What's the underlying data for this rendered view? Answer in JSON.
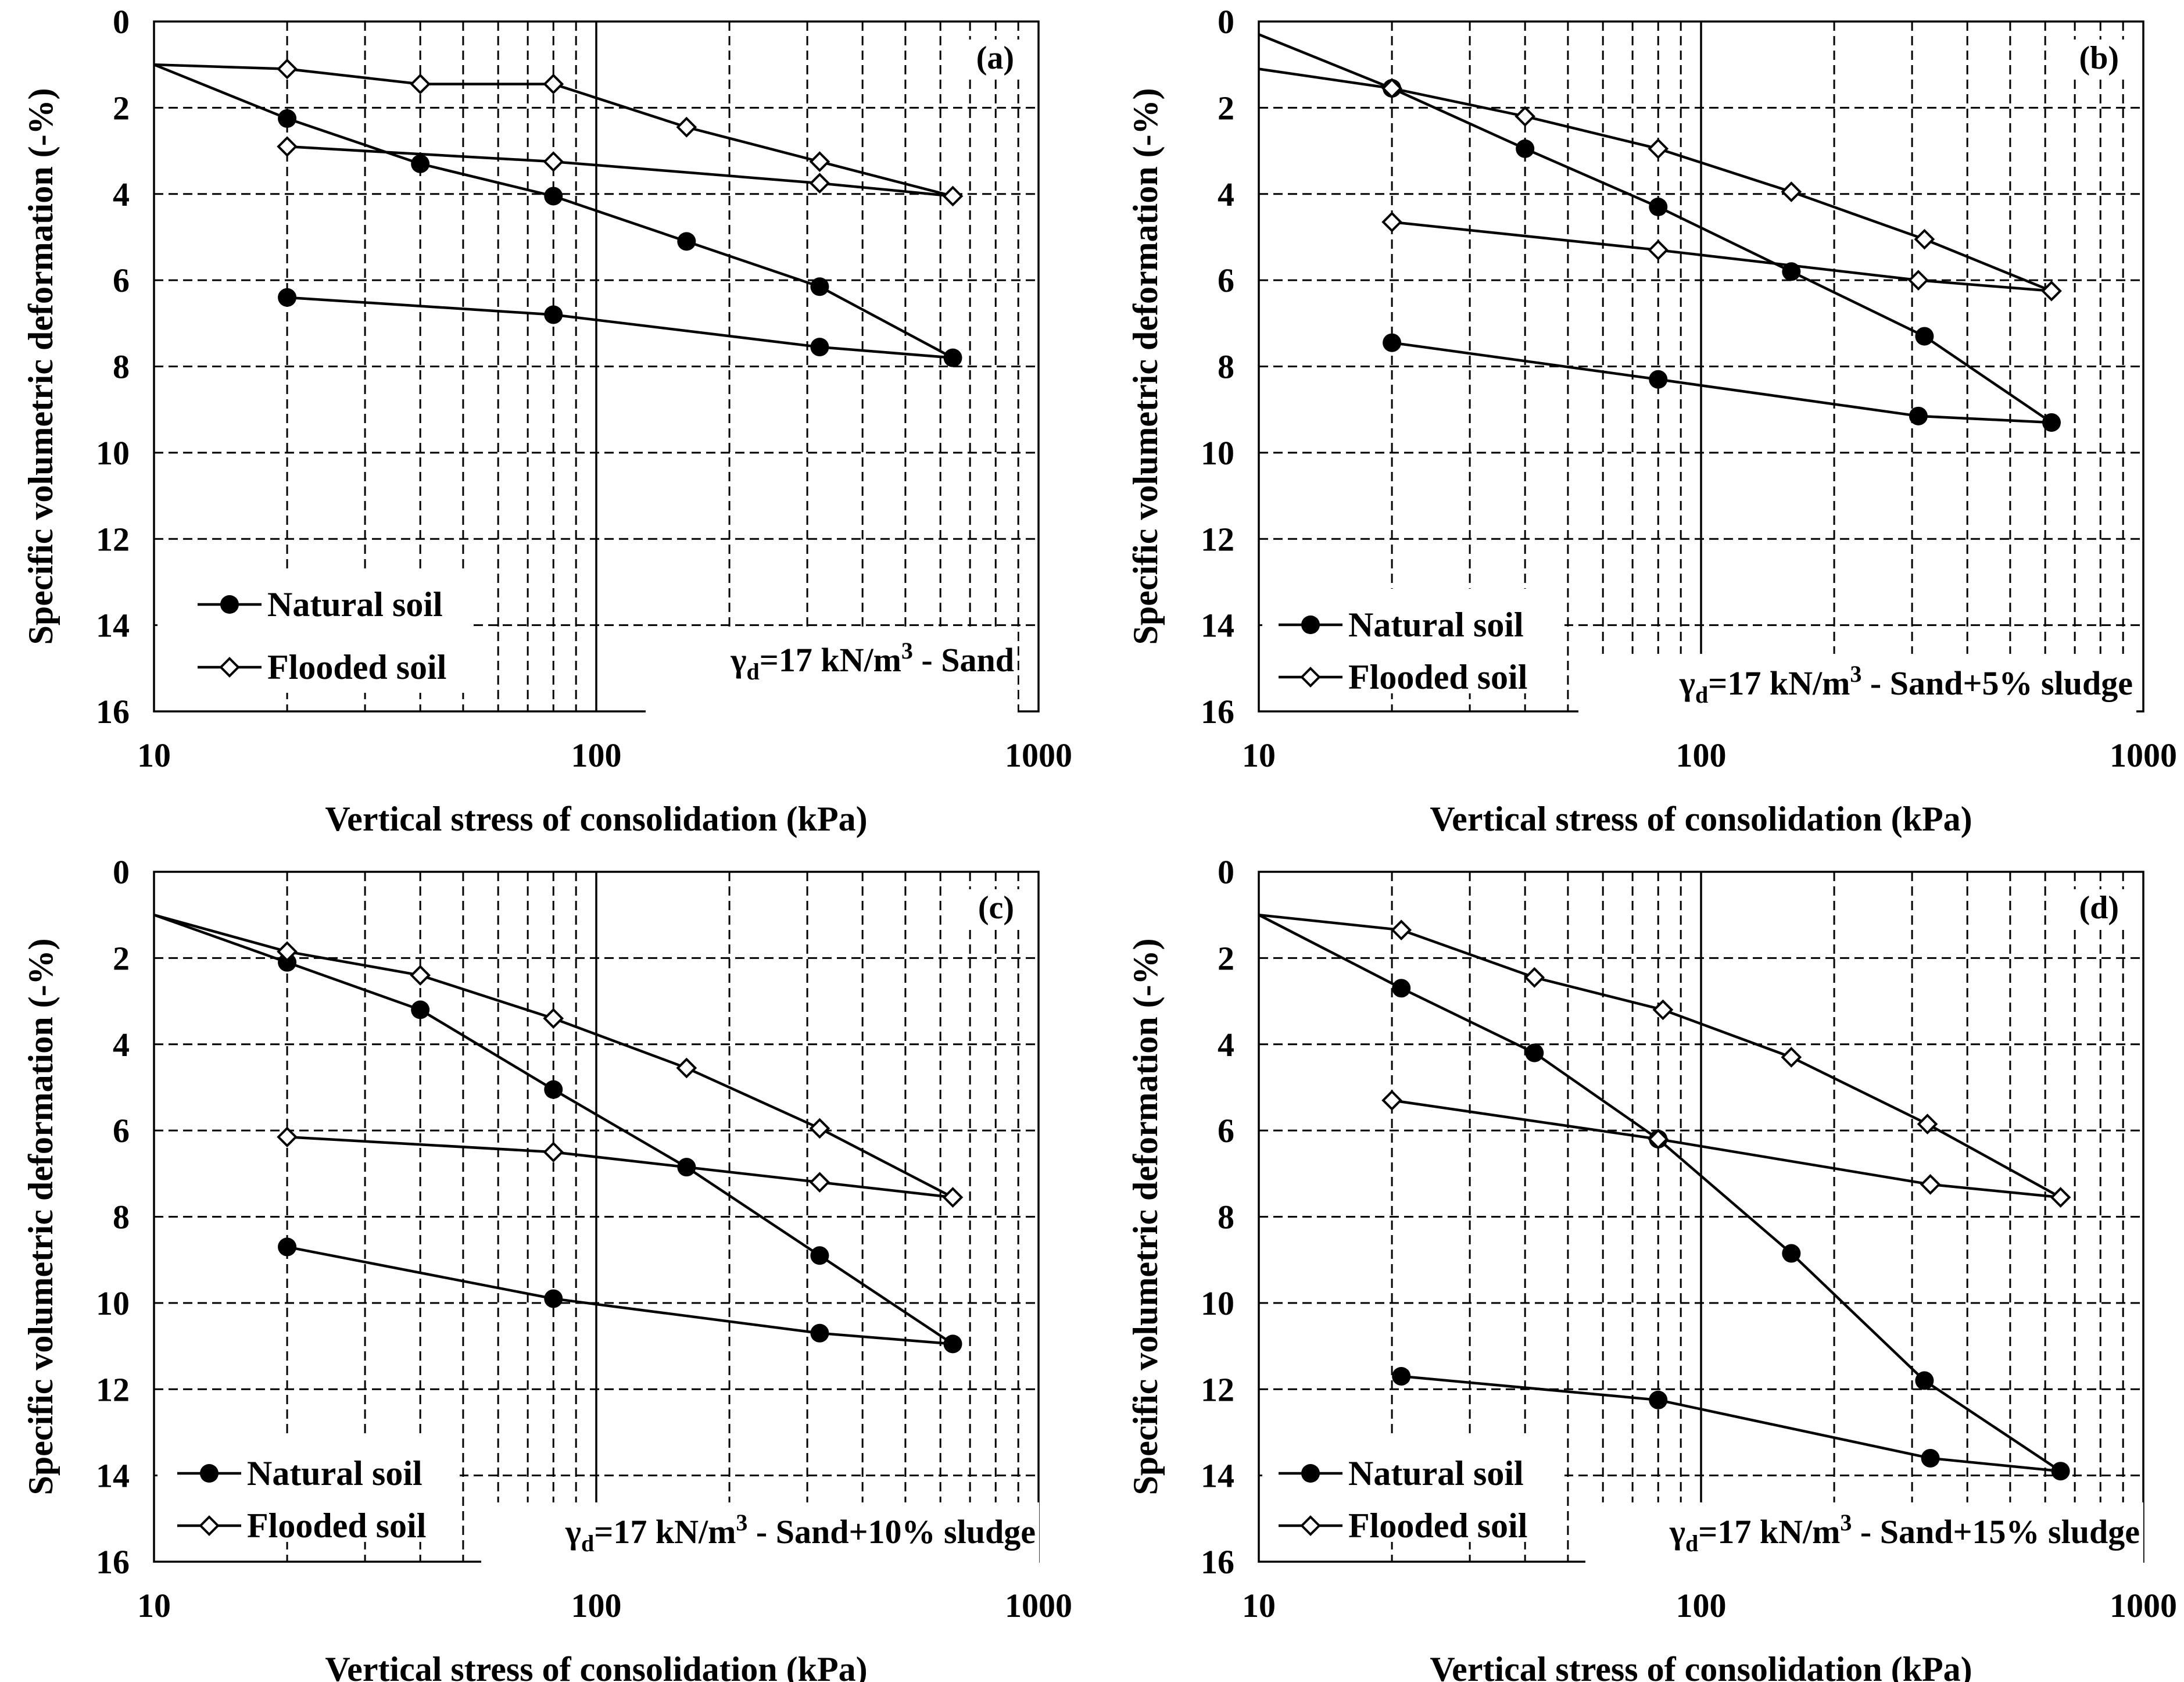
{
  "figure": {
    "panels": [
      "a",
      "b",
      "c",
      "d"
    ]
  },
  "chart_data": [
    {
      "type": "line",
      "panel_label": "(a)",
      "annotation": {
        "prefix": "γ",
        "subscript": "d",
        "middle": "=17 kN/m",
        "superscript": "3",
        "suffix": " - Sand"
      },
      "xlabel": "Vertical stress of consolidation (kPa)",
      "ylabel": "Specific volumetric deformation (-%)",
      "xscale": "log",
      "xlim": [
        10,
        1000
      ],
      "ylim": [
        0,
        16
      ],
      "y_inverted": true,
      "xticks": [
        "10",
        "100",
        "1000"
      ],
      "yticks": [
        "0",
        "2",
        "4",
        "6",
        "8",
        "10",
        "12",
        "14",
        "16"
      ],
      "grid": "dashed",
      "legend_position": "bottom-left",
      "series": [
        {
          "name": "Natural soil",
          "marker": "filled-circle",
          "points": [
            [
              10,
              1.0
            ],
            [
              20,
              2.25
            ],
            [
              40,
              3.3
            ],
            [
              80,
              4.05
            ],
            [
              160,
              5.1
            ],
            [
              320,
              6.15
            ],
            [
              640,
              7.8
            ],
            [
              320,
              7.55
            ],
            [
              80,
              6.8
            ],
            [
              20,
              6.4
            ]
          ]
        },
        {
          "name": "Flooded soil",
          "marker": "open-diamond",
          "points": [
            [
              10,
              1.0
            ],
            [
              20,
              1.1
            ],
            [
              40,
              1.45
            ],
            [
              80,
              1.45
            ],
            [
              160,
              2.45
            ],
            [
              320,
              3.25
            ],
            [
              640,
              4.05
            ],
            [
              320,
              3.75
            ],
            [
              80,
              3.25
            ],
            [
              20,
              2.9
            ]
          ]
        }
      ]
    },
    {
      "type": "line",
      "panel_label": "(b)",
      "annotation": {
        "prefix": "γ",
        "subscript": "d",
        "middle": "=17 kN/m",
        "superscript": "3",
        "suffix": " - Sand+5% sludge"
      },
      "xlabel": "Vertical stress of consolidation (kPa)",
      "ylabel": "Specific volumetric deformation (-%)",
      "xscale": "log",
      "xlim": [
        10,
        1000
      ],
      "ylim": [
        0,
        16
      ],
      "y_inverted": true,
      "xticks": [
        "10",
        "100",
        "1000"
      ],
      "yticks": [
        "0",
        "2",
        "4",
        "6",
        "8",
        "10",
        "12",
        "14",
        "16"
      ],
      "grid": "dashed",
      "legend_position": "bottom-left",
      "series": [
        {
          "name": "Natural soil",
          "marker": "filled-circle",
          "points": [
            [
              10,
              0.3
            ],
            [
              20,
              1.55
            ],
            [
              40,
              2.95
            ],
            [
              80,
              4.3
            ],
            [
              160,
              5.8
            ],
            [
              320,
              7.3
            ],
            [
              620,
              9.3
            ],
            [
              310,
              9.15
            ],
            [
              80,
              8.3
            ],
            [
              20,
              7.45
            ]
          ]
        },
        {
          "name": "Flooded soil",
          "marker": "open-diamond",
          "points": [
            [
              10,
              1.1
            ],
            [
              20,
              1.55
            ],
            [
              40,
              2.2
            ],
            [
              80,
              2.95
            ],
            [
              160,
              3.95
            ],
            [
              320,
              5.05
            ],
            [
              620,
              6.25
            ],
            [
              310,
              6.0
            ],
            [
              80,
              5.3
            ],
            [
              20,
              4.65
            ]
          ]
        }
      ]
    },
    {
      "type": "line",
      "panel_label": "(c)",
      "annotation": {
        "prefix": "γ",
        "subscript": "d",
        "middle": "=17 kN/m",
        "superscript": "3",
        "suffix": " - Sand+10% sludge"
      },
      "xlabel": "Vertical stress of consolidation (kPa)",
      "ylabel": "Specific volumetric deformation (-%)",
      "xscale": "log",
      "xlim": [
        10,
        1000
      ],
      "ylim": [
        0,
        16
      ],
      "y_inverted": true,
      "xticks": [
        "10",
        "100",
        "1000"
      ],
      "yticks": [
        "0",
        "2",
        "4",
        "6",
        "8",
        "10",
        "12",
        "14",
        "16"
      ],
      "grid": "dashed",
      "legend_position": "bottom-left",
      "series": [
        {
          "name": "Natural soil",
          "marker": "filled-circle",
          "points": [
            [
              10,
              1.0
            ],
            [
              20,
              2.1
            ],
            [
              40,
              3.2
            ],
            [
              80,
              5.05
            ],
            [
              160,
              6.85
            ],
            [
              320,
              8.9
            ],
            [
              640,
              10.95
            ],
            [
              320,
              10.7
            ],
            [
              80,
              9.9
            ],
            [
              20,
              8.7
            ]
          ]
        },
        {
          "name": "Flooded soil",
          "marker": "open-diamond",
          "points": [
            [
              10,
              1.0
            ],
            [
              20,
              1.85
            ],
            [
              40,
              2.4
            ],
            [
              80,
              3.4
            ],
            [
              160,
              4.55
            ],
            [
              320,
              5.95
            ],
            [
              640,
              7.55
            ],
            [
              320,
              7.2
            ],
            [
              80,
              6.5
            ],
            [
              20,
              6.15
            ]
          ]
        }
      ]
    },
    {
      "type": "line",
      "panel_label": "(d)",
      "annotation": {
        "prefix": "γ",
        "subscript": "d",
        "middle": "=17 kN/m",
        "superscript": "3",
        "suffix": " - Sand+15% sludge"
      },
      "xlabel": "Vertical stress of consolidation (kPa)",
      "ylabel": "Specific volumetric deformation (-%)",
      "xscale": "log",
      "xlim": [
        10,
        1000
      ],
      "ylim": [
        0,
        16
      ],
      "y_inverted": true,
      "xticks": [
        "10",
        "100",
        "1000"
      ],
      "yticks": [
        "0",
        "2",
        "4",
        "6",
        "8",
        "10",
        "12",
        "14",
        "16"
      ],
      "grid": "dashed",
      "legend_position": "bottom-left",
      "series": [
        {
          "name": "Natural soil",
          "marker": "filled-circle",
          "points": [
            [
              10,
              1.0
            ],
            [
              21,
              2.7
            ],
            [
              42,
              4.2
            ],
            [
              80,
              6.2
            ],
            [
              160,
              8.85
            ],
            [
              320,
              11.8
            ],
            [
              650,
              13.9
            ],
            [
              330,
              13.6
            ],
            [
              80,
              12.25
            ],
            [
              21,
              11.7
            ]
          ]
        },
        {
          "name": "Flooded soil",
          "marker": "open-diamond",
          "points": [
            [
              10,
              1.0
            ],
            [
              21,
              1.35
            ],
            [
              42,
              2.45
            ],
            [
              82,
              3.2
            ],
            [
              160,
              4.3
            ],
            [
              325,
              5.85
            ],
            [
              650,
              7.55
            ],
            [
              330,
              7.25
            ],
            [
              80,
              6.2
            ],
            [
              20,
              5.3
            ]
          ]
        }
      ]
    }
  ]
}
